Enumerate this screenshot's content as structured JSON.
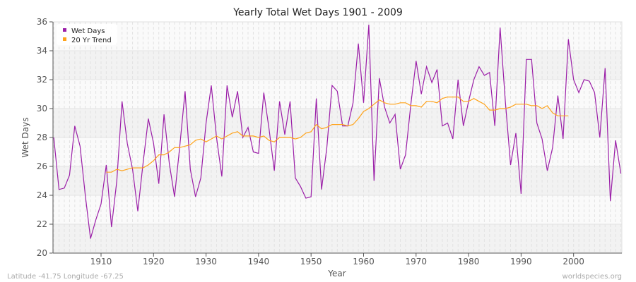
{
  "chart_data": {
    "type": "line",
    "title": "Yearly Total Wet Days 1901 - 2009",
    "xlabel": "Year",
    "ylabel": "Wet Days",
    "xlim": [
      1901,
      2009
    ],
    "ylim": [
      20,
      36
    ],
    "x_ticks": [
      1910,
      1920,
      1930,
      1940,
      1950,
      1960,
      1970,
      1980,
      1990,
      2000
    ],
    "y_ticks": [
      20,
      22,
      24,
      26,
      28,
      30,
      32,
      34,
      36
    ],
    "grid": true,
    "legend_placement": "top-left",
    "series": [
      {
        "name": "Wet Days",
        "color": "#9b1fa8",
        "start_year": 1901,
        "values": [
          28.0,
          24.4,
          24.5,
          25.4,
          28.8,
          27.4,
          24.0,
          21.0,
          22.3,
          23.4,
          26.1,
          21.8,
          25.0,
          30.5,
          27.6,
          25.8,
          22.9,
          26.2,
          29.3,
          27.6,
          24.8,
          29.6,
          26.2,
          23.9,
          27.4,
          31.2,
          25.8,
          23.9,
          25.2,
          29.0,
          31.6,
          28.0,
          25.3,
          31.6,
          29.4,
          31.2,
          28.0,
          28.7,
          27.0,
          26.9,
          31.1,
          28.6,
          25.7,
          30.5,
          28.2,
          30.5,
          25.2,
          24.6,
          23.8,
          23.9,
          30.7,
          24.4,
          27.3,
          31.6,
          31.2,
          28.8,
          28.8,
          30.4,
          34.5,
          30.4,
          35.8,
          25.0,
          32.1,
          30.1,
          29.0,
          29.6,
          25.8,
          26.8,
          30.3,
          33.3,
          31.0,
          32.9,
          31.8,
          32.7,
          28.8,
          29.0,
          27.9,
          32.0,
          28.8,
          30.5,
          32.0,
          32.9,
          32.3,
          32.5,
          28.8,
          35.6,
          30.5,
          26.1,
          28.3,
          24.1,
          33.4,
          33.4,
          29.0,
          27.9,
          25.7,
          27.3,
          30.9,
          27.9,
          34.8,
          32.0,
          31.1,
          32.0,
          31.9,
          31.1,
          28.0,
          32.8,
          23.6,
          27.8,
          25.5
        ]
      },
      {
        "name": "20 Yr Trend",
        "color": "#ffa31a",
        "start_year": 1911,
        "values": [
          25.6,
          25.6,
          25.8,
          25.7,
          25.8,
          25.9,
          25.9,
          25.9,
          26.1,
          26.4,
          26.8,
          26.8,
          27.0,
          27.3,
          27.3,
          27.4,
          27.5,
          27.8,
          27.9,
          27.7,
          27.9,
          28.1,
          27.9,
          28.1,
          28.3,
          28.4,
          28.1,
          28.1,
          28.1,
          28.0,
          28.1,
          27.8,
          27.7,
          28.0,
          28.0,
          28.0,
          27.9,
          28.0,
          28.3,
          28.4,
          28.9,
          28.6,
          28.7,
          28.9,
          28.9,
          28.9,
          28.8,
          28.9,
          29.3,
          29.8,
          30.0,
          30.3,
          30.6,
          30.4,
          30.3,
          30.3,
          30.4,
          30.4,
          30.2,
          30.2,
          30.1,
          30.5,
          30.5,
          30.4,
          30.7,
          30.8,
          30.8,
          30.8,
          30.5,
          30.5,
          30.7,
          30.5,
          30.3,
          29.9,
          29.9,
          30.0,
          30.0,
          30.1,
          30.3,
          30.3,
          30.3,
          30.2,
          30.2,
          30.0,
          30.2,
          29.7,
          29.5,
          29.5,
          29.5
        ]
      }
    ]
  },
  "footer": {
    "coords": "Latitude -41.75 Longitude -67.25",
    "site": "worldspecies.org"
  }
}
